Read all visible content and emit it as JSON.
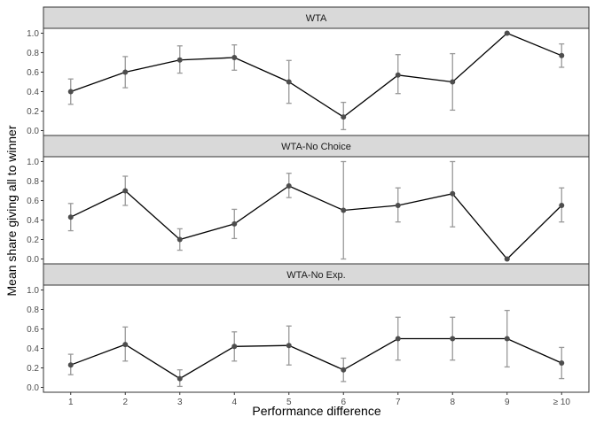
{
  "chart_data": {
    "type": "line",
    "xlabel": "Performance difference",
    "ylabel": "Mean share giving all to winner",
    "categories": [
      "1",
      "2",
      "3",
      "4",
      "5",
      "6",
      "7",
      "8",
      "9",
      "≥ 10"
    ],
    "ylim": [
      -0.05,
      1.05
    ],
    "yticks": [
      "0.0",
      "0.2",
      "0.4",
      "0.6",
      "0.8",
      "1.0"
    ],
    "grid": false,
    "colors": {
      "line": "#000000",
      "point": "#4d4d4d",
      "errorbar": "#999999",
      "strip": "#d9d9d9",
      "frame": "#333333"
    },
    "panels": [
      {
        "title": "WTA",
        "values": [
          0.4,
          0.6,
          0.725,
          0.75,
          0.5,
          0.14,
          0.57,
          0.5,
          1.0,
          0.77
        ],
        "lower": [
          0.27,
          0.44,
          0.59,
          0.62,
          0.28,
          0.01,
          0.38,
          0.21,
          1.0,
          0.65
        ],
        "upper": [
          0.53,
          0.76,
          0.87,
          0.88,
          0.72,
          0.29,
          0.78,
          0.79,
          1.0,
          0.89
        ]
      },
      {
        "title": "WTA-No Choice",
        "values": [
          0.43,
          0.7,
          0.2,
          0.36,
          0.75,
          0.5,
          0.55,
          0.67,
          0.0,
          0.55
        ],
        "lower": [
          0.29,
          0.55,
          0.09,
          0.21,
          0.63,
          0.0,
          0.38,
          0.33,
          0.0,
          0.38
        ],
        "upper": [
          0.57,
          0.85,
          0.31,
          0.51,
          0.88,
          1.0,
          0.73,
          1.0,
          0.0,
          0.73
        ]
      },
      {
        "title": "WTA-No Exp.",
        "values": [
          0.23,
          0.44,
          0.09,
          0.42,
          0.43,
          0.18,
          0.5,
          0.5,
          0.5,
          0.25
        ],
        "lower": [
          0.13,
          0.27,
          0.01,
          0.27,
          0.23,
          0.06,
          0.28,
          0.28,
          0.21,
          0.09
        ],
        "upper": [
          0.34,
          0.62,
          0.18,
          0.57,
          0.63,
          0.3,
          0.72,
          0.72,
          0.79,
          0.41
        ]
      }
    ]
  }
}
